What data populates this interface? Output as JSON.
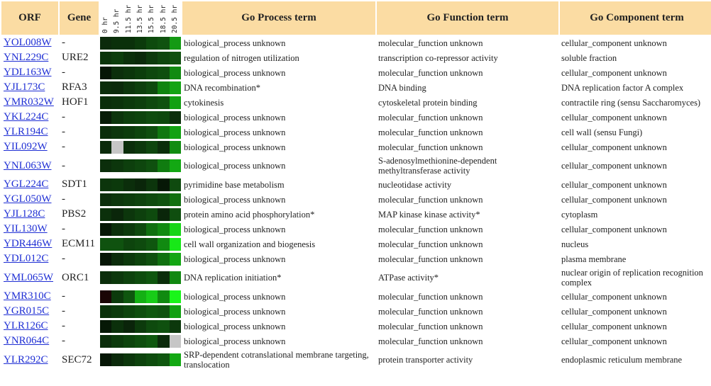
{
  "headers": {
    "orf": "ORF",
    "gene": "Gene",
    "process": "Go Process term",
    "function": "Go Function term",
    "component": "Go Component term"
  },
  "time_labels": [
    "0 hr",
    "9.5 hr",
    "11.5 hr",
    "13.5 hr",
    "15.5 hr",
    "18.5 hr",
    "20.5 hr"
  ],
  "rows": [
    {
      "orf": "YOL008W",
      "gene": "-",
      "process": "biological_process unknown",
      "function": "molecular_function unknown",
      "component": "cellular_component unknown",
      "heat": [
        "#0b2a0b",
        "#0a300a",
        "#0a300a",
        "#0b3a0b",
        "#0d4a0d",
        "#0f520f",
        "#149a14"
      ]
    },
    {
      "orf": "YNL229C",
      "gene": "URE2",
      "process": "regulation of nitrogen utilization",
      "function": "transcription co-repressor activity",
      "component": "soluble fraction",
      "heat": [
        "#0b350b",
        "#0c3d0c",
        "#0b300b",
        "#0a2a0a",
        "#0c3a0c",
        "#0e460e",
        "#10500f"
      ]
    },
    {
      "orf": "YDL163W",
      "gene": "-",
      "process": "biological_process unknown",
      "function": "molecular_function unknown",
      "component": "cellular_component unknown",
      "heat": [
        "#061606",
        "#0b2e0b",
        "#0b350b",
        "#0c3d0c",
        "#0e470e",
        "#0f4e0f",
        "#118a11"
      ]
    },
    {
      "orf": "YJL173C",
      "gene": "RFA3",
      "process": "DNA recombination*",
      "function": "DNA binding",
      "component": "DNA replication factor A complex",
      "heat": [
        "#0b2d0b",
        "#0b2a0b",
        "#0c350c",
        "#0d3f0d",
        "#0e4a0e",
        "#108410",
        "#13a313"
      ]
    },
    {
      "orf": "YMR032W",
      "gene": "HOF1",
      "process": "cytokinesis",
      "function": "cytoskeletal protein binding",
      "component": "contractile ring (sensu Saccharomyces)",
      "heat": [
        "#0a2e0a",
        "#0b320b",
        "#0c390c",
        "#0d3f0d",
        "#0e490e",
        "#0f520f",
        "#12a012"
      ]
    },
    {
      "orf": "YKL224C",
      "gene": "-",
      "process": "biological_process unknown",
      "function": "molecular_function unknown",
      "component": "cellular_component unknown",
      "heat": [
        "#071c07",
        "#0c350c",
        "#0d3f0d",
        "#0d440d",
        "#0f4c0f",
        "#0e480e",
        "#0b2e0b"
      ]
    },
    {
      "orf": "YLR194C",
      "gene": "-",
      "process": "biological_process unknown",
      "function": "molecular_function unknown",
      "component": "cell wall (sensu Fungi)",
      "heat": [
        "#0b2e0b",
        "#0c360c",
        "#0c3c0c",
        "#0d450d",
        "#0f4f0f",
        "#107810",
        "#12a212"
      ]
    },
    {
      "orf": "YIL092W",
      "gene": "-",
      "process": "biological_process unknown",
      "function": "molecular_function unknown",
      "component": "cellular_component unknown",
      "heat": [
        "#0b2a0b",
        "#c6c6c6",
        "#0b2e0b",
        "#0c380c",
        "#0e460e",
        "#0b2e0b",
        "#118c11"
      ]
    },
    {
      "orf": "YNL063W",
      "gene": "-",
      "process": "biological_process unknown",
      "function": "S-adenosylmethionine-dependent methyltransferase activity",
      "component": "cellular_component unknown",
      "heat": [
        "#0b2e0b",
        "#0c360c",
        "#0d3f0d",
        "#0e460e",
        "#0f500f",
        "#107c10",
        "#13a813"
      ],
      "tall": true
    },
    {
      "orf": "YGL224C",
      "gene": "SDT1",
      "process": "pyrimidine base metabolism",
      "function": "nucleotidase activity",
      "component": "cellular_component unknown",
      "heat": [
        "#0c350c",
        "#0c390c",
        "#0b2e0b",
        "#0a260a",
        "#0c350c",
        "#061806",
        "#0f4a0f"
      ]
    },
    {
      "orf": "YGL050W",
      "gene": "-",
      "process": "biological_process unknown",
      "function": "molecular_function unknown",
      "component": "cellular_component unknown",
      "heat": [
        "#0b2e0b",
        "#0c360c",
        "#0c3c0c",
        "#0d420d",
        "#0e4a0e",
        "#0f520f",
        "#11700f"
      ]
    },
    {
      "orf": "YJL128C",
      "gene": "PBS2",
      "process": "protein amino acid phosphorylation*",
      "function": "MAP kinase kinase activity*",
      "component": "cytoplasm",
      "heat": [
        "#0b300b",
        "#0a260a",
        "#0c360c",
        "#0d400d",
        "#0e4a0e",
        "#0a260a",
        "#0f4e0f"
      ]
    },
    {
      "orf": "YIL130W",
      "gene": "-",
      "process": "biological_process unknown",
      "function": "molecular_function unknown",
      "component": "cellular_component unknown",
      "heat": [
        "#061806",
        "#0b300b",
        "#0c3a0c",
        "#0e4a0e",
        "#107010",
        "#118a11",
        "#16d516"
      ]
    },
    {
      "orf": "YDR446W",
      "gene": "ECM11",
      "process": "cell wall organization and biogenesis",
      "function": "molecular_function unknown",
      "component": "nucleus",
      "heat": [
        "#0f520f",
        "#0f520f",
        "#0d440d",
        "#0e4a0e",
        "#0f560f",
        "#118a11",
        "#18e818"
      ]
    },
    {
      "orf": "YDL012C",
      "gene": "-",
      "process": "biological_process unknown",
      "function": "molecular_function unknown",
      "component": "plasma membrane",
      "heat": [
        "#061606",
        "#0b2c0b",
        "#0c380c",
        "#0d440d",
        "#0f500f",
        "#107010",
        "#13a613"
      ]
    },
    {
      "orf": "YML065W",
      "gene": "ORC1",
      "process": "DNA replication initiation*",
      "function": "ATPase activity*",
      "component": "nuclear origin of replication recognition complex",
      "heat": [
        "#0b2e0b",
        "#0c380c",
        "#0d420d",
        "#0e4c0e",
        "#0f560f",
        "#0b2e0b",
        "#118811"
      ],
      "tall": true
    },
    {
      "orf": "YMR310C",
      "gene": "-",
      "process": "biological_process unknown",
      "function": "molecular_function unknown",
      "component": "cellular_component unknown",
      "heat": [
        "#1a0505",
        "#0c3a0c",
        "#0f560f",
        "#14b014",
        "#18cc18",
        "#108a10",
        "#1af51a"
      ]
    },
    {
      "orf": "YGR015C",
      "gene": "-",
      "process": "biological_process unknown",
      "function": "molecular_function unknown",
      "component": "cellular_component unknown",
      "heat": [
        "#0b320b",
        "#0c3a0c",
        "#0d440d",
        "#0e4e0e",
        "#0f580f",
        "#0f520f",
        "#12a012"
      ]
    },
    {
      "orf": "YLR126C",
      "gene": "-",
      "process": "biological_process unknown",
      "function": "molecular_function unknown",
      "component": "cellular_component unknown",
      "heat": [
        "#061806",
        "#0b300b",
        "#0a240a",
        "#0c3a0c",
        "#0e4a0e",
        "#0f500f",
        "#0c380c"
      ]
    },
    {
      "orf": "YNR064C",
      "gene": "-",
      "process": "biological_process unknown",
      "function": "molecular_function unknown",
      "component": "cellular_component unknown",
      "heat": [
        "#0b2e0b",
        "#0c3a0c",
        "#0d440d",
        "#0e4e0e",
        "#0f580f",
        "#0b2a0b",
        "#c6c6c6"
      ]
    },
    {
      "orf": "YLR292C",
      "gene": "SEC72",
      "process": "SRP-dependent cotranslational membrane targeting, translocation",
      "function": "protein transporter activity",
      "component": "endoplasmic reticulum membrane",
      "heat": [
        "#061606",
        "#0b2a0b",
        "#0c360c",
        "#0d420d",
        "#0e4c0e",
        "#0f560f",
        "#13a813"
      ],
      "tall": true
    }
  ]
}
